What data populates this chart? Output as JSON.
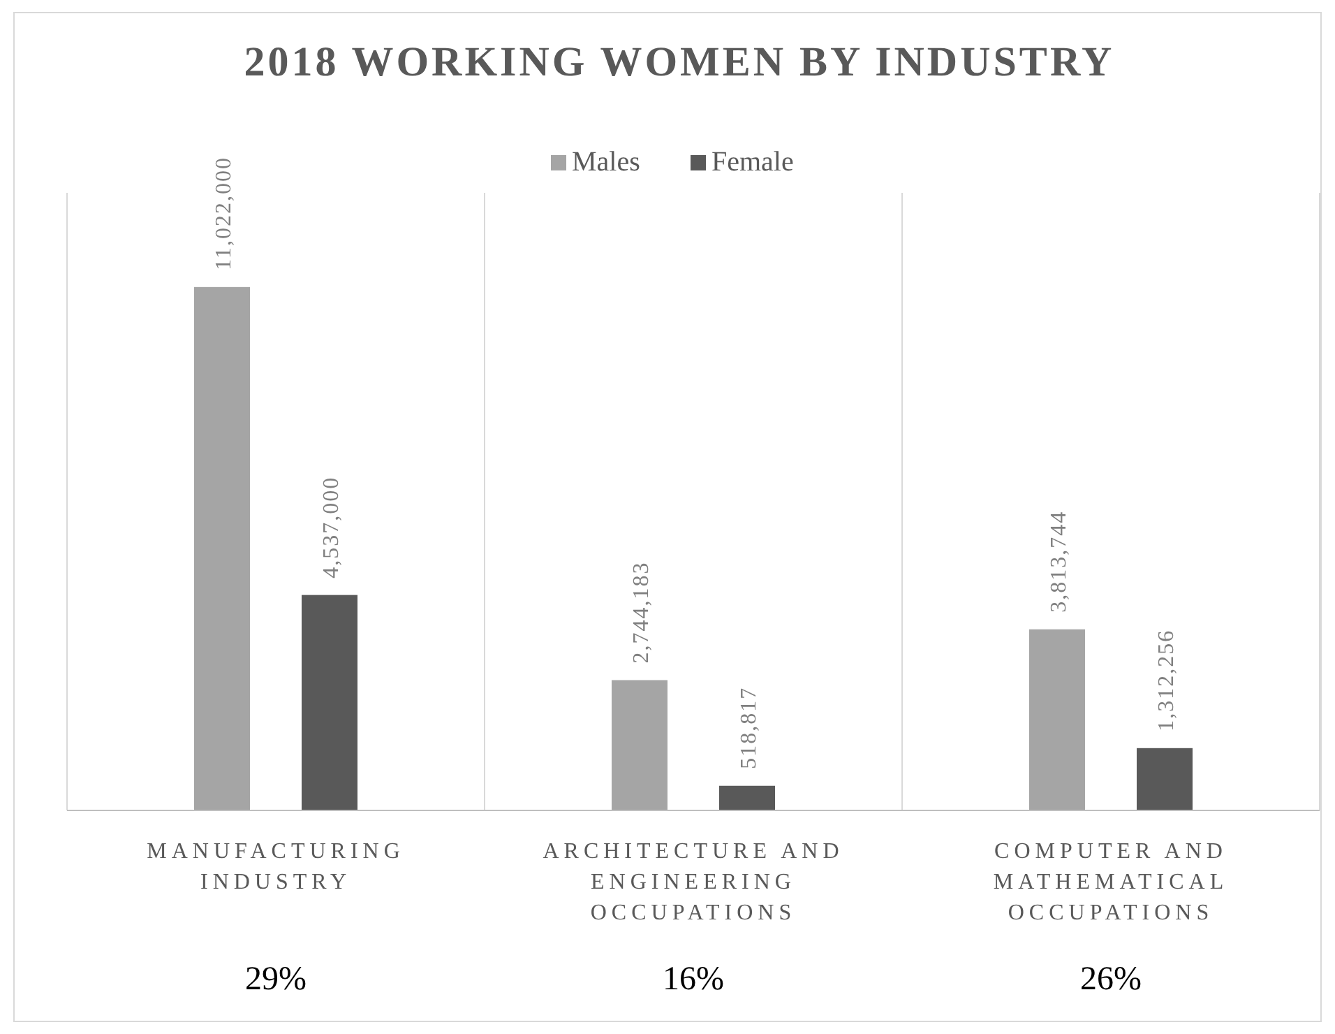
{
  "chart_data": {
    "type": "bar",
    "title": "2018 WORKING WOMEN BY INDUSTRY",
    "categories": [
      "MANUFACTURING INDUSTRY",
      "ARCHITECTURE AND ENGINEERING OCCUPATIONS",
      "COMPUTER AND MATHEMATICAL OCCUPATIONS"
    ],
    "series": [
      {
        "name": "Males",
        "color": "#a5a5a5",
        "values": [
          11022000,
          2744183,
          3813744
        ],
        "value_labels": [
          "11,022,000",
          "2,744,183",
          "3,813,744"
        ]
      },
      {
        "name": "Female",
        "color": "#595959",
        "values": [
          4537000,
          518817,
          1312256
        ],
        "value_labels": [
          "4,537,000",
          "518,817",
          "1,312,256"
        ]
      }
    ],
    "grid": "x",
    "legend": "top",
    "annotations": [
      "29%",
      "16%",
      "26%"
    ]
  }
}
